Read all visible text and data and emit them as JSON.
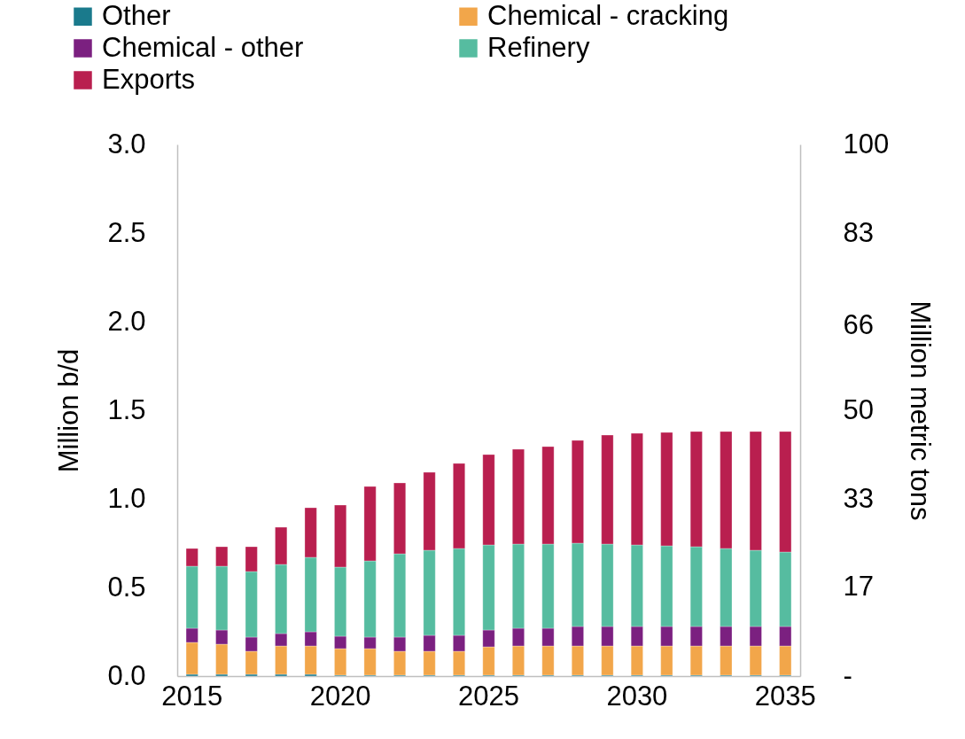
{
  "chart_data": {
    "type": "bar",
    "stacked": true,
    "categories": [
      "2015",
      null,
      null,
      null,
      null,
      "2020",
      null,
      null,
      null,
      null,
      "2025",
      null,
      null,
      null,
      null,
      "2030",
      null,
      null,
      null,
      null,
      "2035"
    ],
    "ylabel": "Million b/d",
    "y2label": "Million metric tons",
    "ylim": [
      0,
      3
    ],
    "yticks": [
      {
        "value": 0,
        "label": "0.0"
      },
      {
        "value": 0.5,
        "label": "0.5"
      },
      {
        "value": 1,
        "label": "1.0"
      },
      {
        "value": 1.5,
        "label": "1.5"
      },
      {
        "value": 2,
        "label": "2.0"
      },
      {
        "value": 2.5,
        "label": "2.5"
      },
      {
        "value": 3,
        "label": "3.0"
      }
    ],
    "y2lim": [
      0,
      100
    ],
    "y2ticks": [
      {
        "value": 0,
        "label": "-"
      },
      {
        "value": 16.67,
        "label": "17"
      },
      {
        "value": 33.33,
        "label": "33"
      },
      50,
      66,
      {
        "value": 83.33,
        "label": "83"
      },
      100
    ],
    "grid": false,
    "legend": "top",
    "series": [
      {
        "name": "Other",
        "color": "#1a7a8c",
        "values": [
          0.01,
          0.01,
          0.01,
          0.01,
          0.01,
          0.005,
          0.005,
          0.005,
          0.005,
          0.005,
          0.005,
          0.005,
          0.005,
          0.005,
          0.005,
          0.005,
          0.005,
          0.005,
          0.005,
          0.005,
          0.005
        ]
      },
      {
        "name": "Chemical - cracking",
        "color": "#f2a64a",
        "values": [
          0.18,
          0.17,
          0.13,
          0.16,
          0.16,
          0.15,
          0.15,
          0.135,
          0.135,
          0.135,
          0.16,
          0.165,
          0.165,
          0.165,
          0.165,
          0.165,
          0.165,
          0.165,
          0.165,
          0.165,
          0.165
        ]
      },
      {
        "name": "Chemical - other",
        "color": "#7b2080",
        "values": [
          0.08,
          0.08,
          0.08,
          0.07,
          0.08,
          0.07,
          0.065,
          0.08,
          0.09,
          0.09,
          0.095,
          0.1,
          0.1,
          0.11,
          0.11,
          0.11,
          0.11,
          0.11,
          0.11,
          0.11,
          0.11
        ]
      },
      {
        "name": "Refinery",
        "color": "#56bca0",
        "values": [
          0.35,
          0.36,
          0.37,
          0.39,
          0.42,
          0.39,
          0.43,
          0.47,
          0.48,
          0.49,
          0.48,
          0.475,
          0.475,
          0.47,
          0.465,
          0.46,
          0.455,
          0.45,
          0.44,
          0.43,
          0.42
        ]
      },
      {
        "name": "Exports",
        "color": "#b91f4f",
        "values": [
          0.1,
          0.11,
          0.14,
          0.21,
          0.28,
          0.35,
          0.42,
          0.4,
          0.44,
          0.48,
          0.51,
          0.535,
          0.55,
          0.58,
          0.615,
          0.63,
          0.64,
          0.65,
          0.66,
          0.67,
          0.68
        ]
      }
    ]
  }
}
